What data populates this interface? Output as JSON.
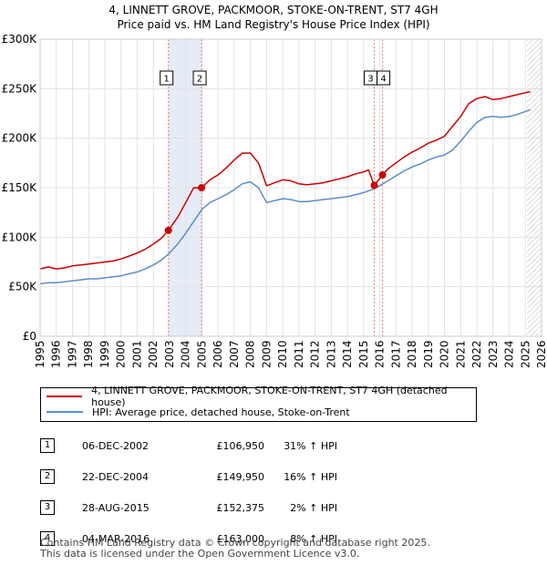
{
  "title_line1": "4, LINNETT GROVE, PACKMOOR, STOKE-ON-TRENT, ST7 4GH",
  "title_line2": "Price paid vs. HM Land Registry's House Price Index (HPI)",
  "chart_data": {
    "type": "line",
    "title": "4, LINNETT GROVE, PACKMOOR, STOKE-ON-TRENT, ST7 4GH",
    "subtitle": "Price paid vs. HM Land Registry's House Price Index (HPI)",
    "xlim": [
      1995,
      2026
    ],
    "ylim": [
      0,
      300000
    ],
    "x_ticks": [
      1995,
      1996,
      1997,
      1998,
      1999,
      2000,
      2001,
      2002,
      2003,
      2004,
      2005,
      2006,
      2007,
      2008,
      2009,
      2010,
      2011,
      2012,
      2013,
      2014,
      2015,
      2016,
      2017,
      2018,
      2019,
      2020,
      2021,
      2022,
      2023,
      2024,
      2025,
      2026
    ],
    "y_ticks": [
      0,
      50000,
      100000,
      150000,
      200000,
      250000,
      300000
    ],
    "y_tick_labels": [
      "£0",
      "£50K",
      "£100K",
      "£150K",
      "£200K",
      "£250K",
      "£300K"
    ],
    "grid": true,
    "shaded_ranges": [
      [
        2002.93,
        2004.98
      ]
    ],
    "forecast_start": 2025.1,
    "series": [
      {
        "name": "4, LINNETT GROVE, PACKMOOR, STOKE-ON-TRENT, ST7 4GH (detached house)",
        "color": "#cc0000",
        "x": [
          1995,
          1995.5,
          1996,
          1996.5,
          1997,
          1997.5,
          1998,
          1998.5,
          1999,
          1999.5,
          2000,
          2000.5,
          2001,
          2001.5,
          2002,
          2002.5,
          2002.93,
          2003.5,
          2004,
          2004.5,
          2004.98,
          2005.5,
          2006,
          2006.5,
          2007,
          2007.5,
          2008,
          2008.5,
          2009,
          2009.5,
          2010,
          2010.5,
          2011,
          2011.5,
          2012,
          2012.5,
          2013,
          2013.5,
          2014,
          2014.5,
          2015,
          2015.3,
          2015.66,
          2016.17,
          2016.5,
          2017,
          2017.5,
          2018,
          2018.5,
          2019,
          2019.5,
          2020,
          2020.5,
          2021,
          2021.5,
          2022,
          2022.5,
          2023,
          2023.5,
          2024,
          2024.5,
          2025,
          2025.3
        ],
        "values": [
          68000,
          70000,
          68000,
          69000,
          71000,
          72000,
          73000,
          74000,
          75000,
          76000,
          78000,
          81000,
          84000,
          88000,
          93000,
          99000,
          106950,
          120000,
          135000,
          150000,
          149950,
          158000,
          163000,
          170000,
          178000,
          185000,
          185000,
          175000,
          152000,
          155000,
          158000,
          157000,
          154000,
          153000,
          154000,
          155000,
          157000,
          159000,
          161000,
          164000,
          166000,
          168000,
          152375,
          163000,
          169000,
          175000,
          181000,
          186000,
          190000,
          195000,
          198000,
          202000,
          212000,
          222000,
          235000,
          240000,
          242000,
          239000,
          240000,
          242000,
          244000,
          246000,
          247000
        ]
      },
      {
        "name": "HPI: Average price, detached house, Stoke-on-Trent",
        "color": "#5b8ec7",
        "x": [
          1995,
          1995.5,
          1996,
          1996.5,
          1997,
          1997.5,
          1998,
          1998.5,
          1999,
          1999.5,
          2000,
          2000.5,
          2001,
          2001.5,
          2002,
          2002.5,
          2003,
          2003.5,
          2004,
          2004.5,
          2005,
          2005.5,
          2006,
          2006.5,
          2007,
          2007.5,
          2008,
          2008.5,
          2009,
          2009.5,
          2010,
          2010.5,
          2011,
          2011.5,
          2012,
          2012.5,
          2013,
          2013.5,
          2014,
          2014.5,
          2015,
          2015.5,
          2016,
          2016.5,
          2017,
          2017.5,
          2018,
          2018.5,
          2019,
          2019.5,
          2020,
          2020.5,
          2021,
          2021.5,
          2022,
          2022.5,
          2023,
          2023.5,
          2024,
          2024.5,
          2025,
          2025.3
        ],
        "values": [
          53000,
          54000,
          54000,
          55000,
          56000,
          57000,
          58000,
          58000,
          59000,
          60000,
          61000,
          63000,
          65000,
          68000,
          72000,
          77000,
          84000,
          93000,
          104000,
          116000,
          128000,
          135000,
          139000,
          143000,
          148000,
          154000,
          156000,
          150000,
          135000,
          137000,
          139000,
          138000,
          136000,
          136000,
          137000,
          138000,
          139000,
          140000,
          141000,
          143000,
          145000,
          148000,
          152000,
          157000,
          162000,
          167000,
          171000,
          174000,
          178000,
          181000,
          183000,
          188000,
          197000,
          207000,
          216000,
          221000,
          222000,
          221000,
          222000,
          224000,
          227000,
          229000
        ]
      }
    ],
    "markers": [
      {
        "label": "1",
        "x": 2002.93,
        "y": 106950
      },
      {
        "label": "2",
        "x": 2004.98,
        "y": 149950
      },
      {
        "label": "3",
        "x": 2015.66,
        "y": 152375
      },
      {
        "label": "4",
        "x": 2016.17,
        "y": 163000
      }
    ]
  },
  "legend": {
    "items": [
      {
        "label": "4, LINNETT GROVE, PACKMOOR, STOKE-ON-TRENT, ST7 4GH (detached house)",
        "color": "#cc0000"
      },
      {
        "label": "HPI: Average price, detached house, Stoke-on-Trent",
        "color": "#5b8ec7"
      }
    ]
  },
  "sales": [
    {
      "num": "1",
      "date": "06-DEC-2002",
      "price": "£106,950",
      "hpi": "31% ↑ HPI"
    },
    {
      "num": "2",
      "date": "22-DEC-2004",
      "price": "£149,950",
      "hpi": "16% ↑ HPI"
    },
    {
      "num": "3",
      "date": "28-AUG-2015",
      "price": "£152,375",
      "hpi": "2% ↑ HPI"
    },
    {
      "num": "4",
      "date": "04-MAR-2016",
      "price": "£163,000",
      "hpi": "8% ↑ HPI"
    }
  ],
  "footer": {
    "line1": "Contains HM Land Registry data © Crown copyright and database right 2025.",
    "line2": "This data is licensed under the Open Government Licence v3.0."
  }
}
